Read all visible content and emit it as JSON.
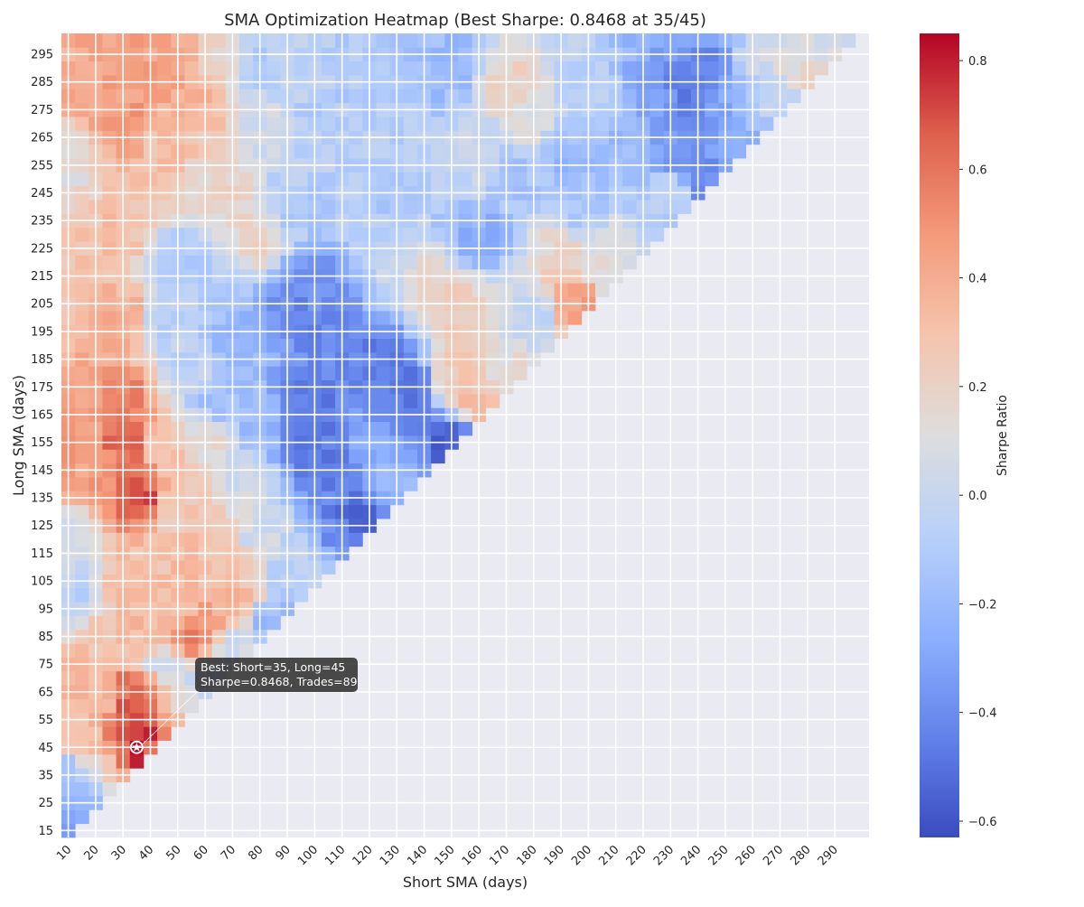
{
  "chart_data": {
    "type": "heatmap",
    "title": "SMA Optimization Heatmap (Best Sharpe: 0.8468 at 35/45)",
    "xlabel": "Short SMA (days)",
    "ylabel": "Long SMA (days)",
    "colorbar_label": "Sharpe Ratio",
    "colormap": "coolwarm",
    "vmin": -0.63,
    "vmax": 0.85,
    "colorbar_ticks": [
      "0.8",
      "0.6",
      "0.4",
      "0.2",
      "0.0",
      "−0.2",
      "−0.4",
      "−0.6"
    ],
    "colorbar_tick_values": [
      0.8,
      0.6,
      0.4,
      0.2,
      0.0,
      -0.2,
      -0.4,
      -0.6
    ],
    "short_range": [
      10,
      300,
      5
    ],
    "long_range": [
      15,
      300,
      5
    ],
    "x_tick_labels": [
      "10",
      "20",
      "30",
      "40",
      "50",
      "60",
      "70",
      "80",
      "90",
      "100",
      "110",
      "120",
      "130",
      "140",
      "150",
      "160",
      "170",
      "180",
      "190",
      "200",
      "210",
      "220",
      "230",
      "240",
      "250",
      "260",
      "270",
      "280",
      "290"
    ],
    "y_tick_labels": [
      "295",
      "285",
      "275",
      "265",
      "255",
      "245",
      "235",
      "225",
      "215",
      "205",
      "195",
      "185",
      "175",
      "165",
      "155",
      "145",
      "135",
      "125",
      "115",
      "105",
      "95",
      "85",
      "75",
      "65",
      "55",
      "45",
      "35",
      "25",
      "15"
    ],
    "valid_region": "long > short",
    "grid": true,
    "colorbar_position": "right",
    "best": {
      "short": 35,
      "long": 45,
      "sharpe": 0.8468,
      "trades": 89
    },
    "annotation": [
      "Best: Short=35, Long=45",
      "Sharpe=0.8468, Trades=89"
    ],
    "anchors": [
      {
        "x": 35,
        "y": 45,
        "v": 0.85
      },
      {
        "x": 30,
        "y": 50,
        "v": 0.7
      },
      {
        "x": 40,
        "y": 50,
        "v": 0.8
      },
      {
        "x": 35,
        "y": 55,
        "v": 0.72
      },
      {
        "x": 40,
        "y": 45,
        "v": 0.6
      },
      {
        "x": 15,
        "y": 30,
        "v": -0.18
      },
      {
        "x": 10,
        "y": 35,
        "v": -0.15
      },
      {
        "x": 10,
        "y": 20,
        "v": -0.3
      },
      {
        "x": 20,
        "y": 40,
        "v": 0.15
      },
      {
        "x": 35,
        "y": 65,
        "v": 0.65
      },
      {
        "x": 55,
        "y": 85,
        "v": 0.6
      },
      {
        "x": 60,
        "y": 90,
        "v": 0.45
      },
      {
        "x": 70,
        "y": 100,
        "v": 0.4
      },
      {
        "x": 25,
        "y": 80,
        "v": 0.3
      },
      {
        "x": 45,
        "y": 75,
        "v": 0.02
      },
      {
        "x": 70,
        "y": 80,
        "v": 0.02
      },
      {
        "x": 85,
        "y": 90,
        "v": -0.2
      },
      {
        "x": 35,
        "y": 135,
        "v": 0.7
      },
      {
        "x": 30,
        "y": 155,
        "v": 0.65
      },
      {
        "x": 30,
        "y": 170,
        "v": 0.55
      },
      {
        "x": 20,
        "y": 145,
        "v": 0.45
      },
      {
        "x": 15,
        "y": 165,
        "v": 0.45
      },
      {
        "x": 35,
        "y": 100,
        "v": 0.35
      },
      {
        "x": 30,
        "y": 200,
        "v": 0.4
      },
      {
        "x": 30,
        "y": 230,
        "v": 0.3
      },
      {
        "x": 30,
        "y": 270,
        "v": 0.5
      },
      {
        "x": 30,
        "y": 290,
        "v": 0.45
      },
      {
        "x": 15,
        "y": 280,
        "v": 0.4
      },
      {
        "x": 10,
        "y": 260,
        "v": 0.12
      },
      {
        "x": 10,
        "y": 120,
        "v": 0.05
      },
      {
        "x": 10,
        "y": 100,
        "v": -0.05
      },
      {
        "x": 45,
        "y": 290,
        "v": 0.45
      },
      {
        "x": 45,
        "y": 260,
        "v": 0.3
      },
      {
        "x": 55,
        "y": 280,
        "v": 0.4
      },
      {
        "x": 65,
        "y": 250,
        "v": 0.2
      },
      {
        "x": 50,
        "y": 130,
        "v": 0.25
      },
      {
        "x": 45,
        "y": 200,
        "v": -0.05
      },
      {
        "x": 50,
        "y": 220,
        "v": -0.1
      },
      {
        "x": 55,
        "y": 180,
        "v": -0.05
      },
      {
        "x": 70,
        "y": 190,
        "v": -0.2
      },
      {
        "x": 65,
        "y": 170,
        "v": -0.15
      },
      {
        "x": 60,
        "y": 120,
        "v": 0.3
      },
      {
        "x": 80,
        "y": 230,
        "v": 0.2
      },
      {
        "x": 85,
        "y": 270,
        "v": 0.05
      },
      {
        "x": 75,
        "y": 140,
        "v": 0.05
      },
      {
        "x": 80,
        "y": 120,
        "v": 0.05
      },
      {
        "x": 90,
        "y": 110,
        "v": -0.1
      },
      {
        "x": 100,
        "y": 110,
        "v": -0.05
      },
      {
        "x": 110,
        "y": 120,
        "v": -0.4
      },
      {
        "x": 115,
        "y": 125,
        "v": -0.55
      },
      {
        "x": 105,
        "y": 145,
        "v": -0.45
      },
      {
        "x": 95,
        "y": 155,
        "v": -0.5
      },
      {
        "x": 100,
        "y": 175,
        "v": -0.45
      },
      {
        "x": 95,
        "y": 200,
        "v": -0.4
      },
      {
        "x": 100,
        "y": 215,
        "v": -0.4
      },
      {
        "x": 110,
        "y": 200,
        "v": -0.45
      },
      {
        "x": 125,
        "y": 190,
        "v": -0.45
      },
      {
        "x": 135,
        "y": 175,
        "v": -0.5
      },
      {
        "x": 140,
        "y": 165,
        "v": -0.45
      },
      {
        "x": 150,
        "y": 155,
        "v": -0.55
      },
      {
        "x": 125,
        "y": 150,
        "v": -0.25
      },
      {
        "x": 130,
        "y": 140,
        "v": -0.2
      },
      {
        "x": 80,
        "y": 160,
        "v": -0.2
      },
      {
        "x": 90,
        "y": 240,
        "v": -0.1
      },
      {
        "x": 100,
        "y": 270,
        "v": -0.1
      },
      {
        "x": 110,
        "y": 240,
        "v": -0.1
      },
      {
        "x": 120,
        "y": 230,
        "v": -0.1
      },
      {
        "x": 130,
        "y": 210,
        "v": 0.0
      },
      {
        "x": 140,
        "y": 210,
        "v": 0.2
      },
      {
        "x": 150,
        "y": 205,
        "v": 0.25
      },
      {
        "x": 155,
        "y": 185,
        "v": 0.3
      },
      {
        "x": 160,
        "y": 170,
        "v": 0.35
      },
      {
        "x": 150,
        "y": 175,
        "v": 0.25
      },
      {
        "x": 170,
        "y": 180,
        "v": 0.15
      },
      {
        "x": 160,
        "y": 230,
        "v": -0.25
      },
      {
        "x": 170,
        "y": 250,
        "v": -0.15
      },
      {
        "x": 180,
        "y": 200,
        "v": -0.05
      },
      {
        "x": 190,
        "y": 220,
        "v": 0.2
      },
      {
        "x": 195,
        "y": 205,
        "v": 0.4
      },
      {
        "x": 200,
        "y": 205,
        "v": 0.5
      },
      {
        "x": 205,
        "y": 215,
        "v": 0.1
      },
      {
        "x": 200,
        "y": 240,
        "v": -0.15
      },
      {
        "x": 150,
        "y": 290,
        "v": -0.2
      },
      {
        "x": 170,
        "y": 285,
        "v": 0.2
      },
      {
        "x": 180,
        "y": 270,
        "v": 0.1
      },
      {
        "x": 200,
        "y": 280,
        "v": -0.05
      },
      {
        "x": 215,
        "y": 265,
        "v": -0.2
      },
      {
        "x": 225,
        "y": 280,
        "v": -0.3
      },
      {
        "x": 235,
        "y": 280,
        "v": -0.5
      },
      {
        "x": 230,
        "y": 260,
        "v": -0.35
      },
      {
        "x": 240,
        "y": 250,
        "v": -0.4
      },
      {
        "x": 245,
        "y": 290,
        "v": -0.4
      },
      {
        "x": 250,
        "y": 270,
        "v": -0.3
      },
      {
        "x": 255,
        "y": 285,
        "v": -0.2
      },
      {
        "x": 260,
        "y": 290,
        "v": 0.05
      },
      {
        "x": 265,
        "y": 280,
        "v": -0.05
      },
      {
        "x": 275,
        "y": 295,
        "v": 0.1
      },
      {
        "x": 280,
        "y": 290,
        "v": 0.2
      },
      {
        "x": 285,
        "y": 295,
        "v": 0.05
      },
      {
        "x": 230,
        "y": 245,
        "v": -0.05
      },
      {
        "x": 220,
        "y": 235,
        "v": -0.1
      },
      {
        "x": 210,
        "y": 230,
        "v": 0.1
      },
      {
        "x": 120,
        "y": 290,
        "v": -0.1
      },
      {
        "x": 65,
        "y": 290,
        "v": 0.2
      },
      {
        "x": 80,
        "y": 290,
        "v": -0.1
      },
      {
        "x": 160,
        "y": 255,
        "v": 0.0
      },
      {
        "x": 190,
        "y": 260,
        "v": -0.2
      },
      {
        "x": 60,
        "y": 155,
        "v": 0.15
      },
      {
        "x": 45,
        "y": 155,
        "v": 0.3
      },
      {
        "x": 40,
        "y": 110,
        "v": 0.3
      },
      {
        "x": 20,
        "y": 60,
        "v": 0.35
      },
      {
        "x": 25,
        "y": 45,
        "v": 0.45
      },
      {
        "x": 15,
        "y": 50,
        "v": 0.3
      },
      {
        "x": 50,
        "y": 60,
        "v": 0.15
      },
      {
        "x": 45,
        "y": 55,
        "v": 0.45
      },
      {
        "x": 60,
        "y": 70,
        "v": 0.0
      },
      {
        "x": 40,
        "y": 85,
        "v": 0.35
      },
      {
        "x": 50,
        "y": 95,
        "v": 0.3
      },
      {
        "x": 55,
        "y": 110,
        "v": 0.35
      },
      {
        "x": 65,
        "y": 105,
        "v": 0.3
      },
      {
        "x": 75,
        "y": 110,
        "v": 0.25
      }
    ]
  }
}
